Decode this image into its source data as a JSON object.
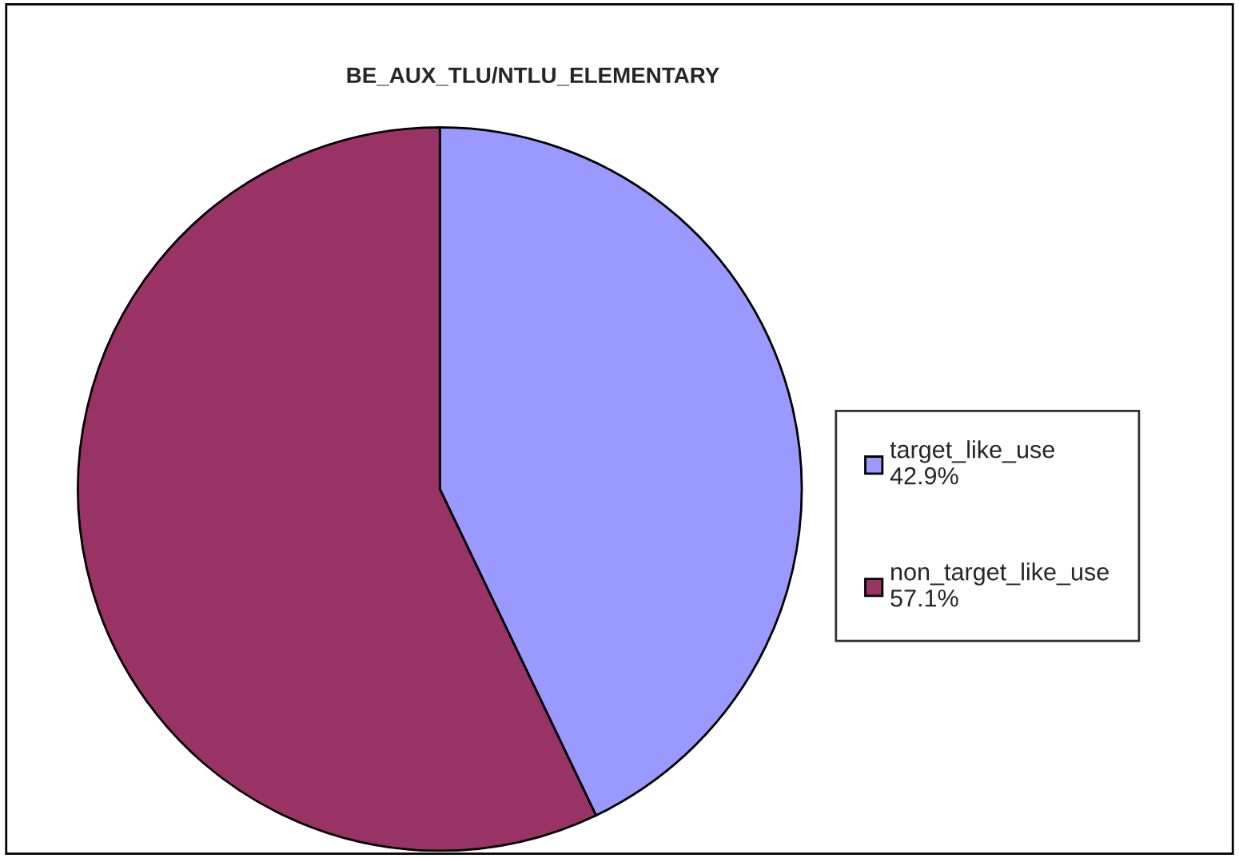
{
  "chart_data": {
    "type": "pie",
    "title": "BE_AUX_TLU/NTLU_ELEMENTARY",
    "categories": [
      "target_like_use",
      "non_target_like_use"
    ],
    "values": [
      42.9,
      57.1
    ],
    "value_labels": [
      "42.9%",
      "57.1%"
    ],
    "colors": [
      "#9999ff",
      "#993366"
    ],
    "legend": "right"
  }
}
